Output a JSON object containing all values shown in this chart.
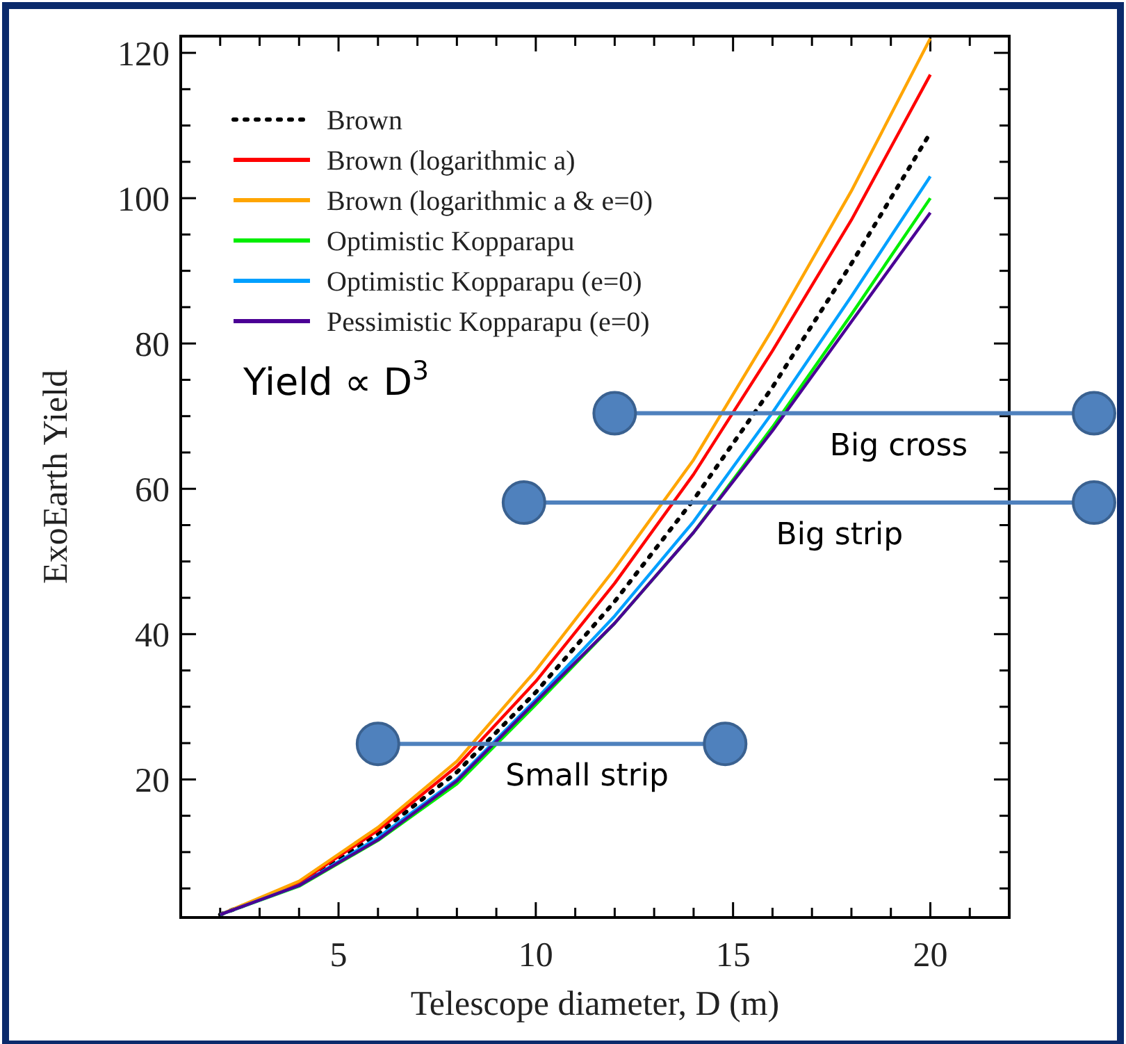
{
  "chart_data": {
    "type": "line",
    "xlabel": "Telescope diameter, D (m)",
    "ylabel": "ExoEarth Yield",
    "annotations": [
      "Yield ∝ D$^{3}$",
      {
        "text": "Big cross",
        "x": 19.2,
        "y": 70.4
      },
      {
        "text": "Big strip",
        "x": 17.7,
        "y": 58.1
      },
      {
        "text": "Small strip",
        "x": 11.3,
        "y": 24.9
      }
    ],
    "xlim": [
      1,
      22
    ],
    "ylim": [
      1,
      122.3
    ],
    "xticks": [
      {
        "value": 2,
        "label": null
      },
      {
        "value": 3,
        "label": null
      },
      {
        "value": 4,
        "label": null
      },
      5,
      {
        "value": 6,
        "label": null
      },
      {
        "value": 7,
        "label": null
      },
      {
        "value": 8,
        "label": null
      },
      {
        "value": 9,
        "label": null
      },
      10,
      {
        "value": 11,
        "label": null
      },
      {
        "value": 12,
        "label": null
      },
      {
        "value": 13,
        "label": null
      },
      {
        "value": 14,
        "label": null
      },
      15,
      {
        "value": 16,
        "label": null
      },
      {
        "value": 17,
        "label": null
      },
      {
        "value": 18,
        "label": null
      },
      {
        "value": 19,
        "label": null
      },
      20,
      {
        "value": 21,
        "label": null
      }
    ],
    "yticks": [
      {
        "value": 5,
        "label": null
      },
      {
        "value": 10,
        "label": null
      },
      {
        "value": 15,
        "label": null
      },
      20,
      {
        "value": 25,
        "label": null
      },
      {
        "value": 30,
        "label": null
      },
      {
        "value": 35,
        "label": null
      },
      40,
      {
        "value": 45,
        "label": null
      },
      {
        "value": 50,
        "label": null
      },
      {
        "value": 55,
        "label": null
      },
      60,
      {
        "value": 65,
        "label": null
      },
      {
        "value": 70,
        "label": null
      },
      {
        "value": 75,
        "label": null
      },
      80,
      {
        "value": 85,
        "label": null
      },
      {
        "value": 90,
        "label": null
      },
      {
        "value": 95,
        "label": null
      },
      100,
      {
        "value": 105,
        "label": null
      },
      {
        "value": 110,
        "label": null
      },
      {
        "value": 115,
        "label": null
      },
      120
    ],
    "grid": false,
    "legend": "top left",
    "x": [
      2,
      4,
      6,
      8,
      10,
      12,
      14,
      16,
      18,
      20
    ],
    "series": [
      {
        "name": "Brown",
        "color": "#000000",
        "line_style": "dotted",
        "values": [
          1.4,
          5.6,
          12.5,
          21,
          32,
          44.5,
          58.5,
          74,
          91,
          109
        ]
      },
      {
        "name": "Brown (logarithmic a)",
        "color": "#ff0000",
        "values": [
          1.4,
          5.8,
          13,
          21.8,
          33.5,
          47,
          62,
          79,
          97,
          117
        ]
      },
      {
        "name": "Brown (logarithmic a & e=0)",
        "color": "#ffa500",
        "values": [
          1.4,
          6,
          13.4,
          22.5,
          35,
          49,
          64,
          82,
          101,
          122
        ]
      },
      {
        "name": "Optimistic Kopparapu",
        "color": "#00ee00",
        "values": [
          1.4,
          5.3,
          11.6,
          19.4,
          30.3,
          41.5,
          54,
          68.5,
          84,
          100
        ]
      },
      {
        "name": "Optimistic Kopparapu (e=0)",
        "color": "#00a0ff",
        "values": [
          1.4,
          5.4,
          12,
          20,
          31,
          42.5,
          55.5,
          70.5,
          86.5,
          103
        ]
      },
      {
        "name": "Pessimistic Kopparapu (e=0)",
        "color": "#4b0095",
        "values": [
          1.4,
          5.4,
          11.7,
          19.8,
          30.7,
          41.5,
          54,
          68,
          83,
          98
        ]
      },
      {
        "color": "#4f81bd",
        "marker": "circle",
        "x": [
          12,
          22
        ],
        "values": [
          70.4,
          70.4
        ]
      },
      {
        "color": "#4f81bd",
        "marker": "circle",
        "x": [
          9.7,
          22
        ],
        "values": [
          58.1,
          58.1
        ]
      },
      {
        "color": "#4f81bd",
        "marker": "circle",
        "x": [
          6,
          14.8
        ],
        "values": [
          24.9,
          24.9
        ]
      }
    ]
  }
}
